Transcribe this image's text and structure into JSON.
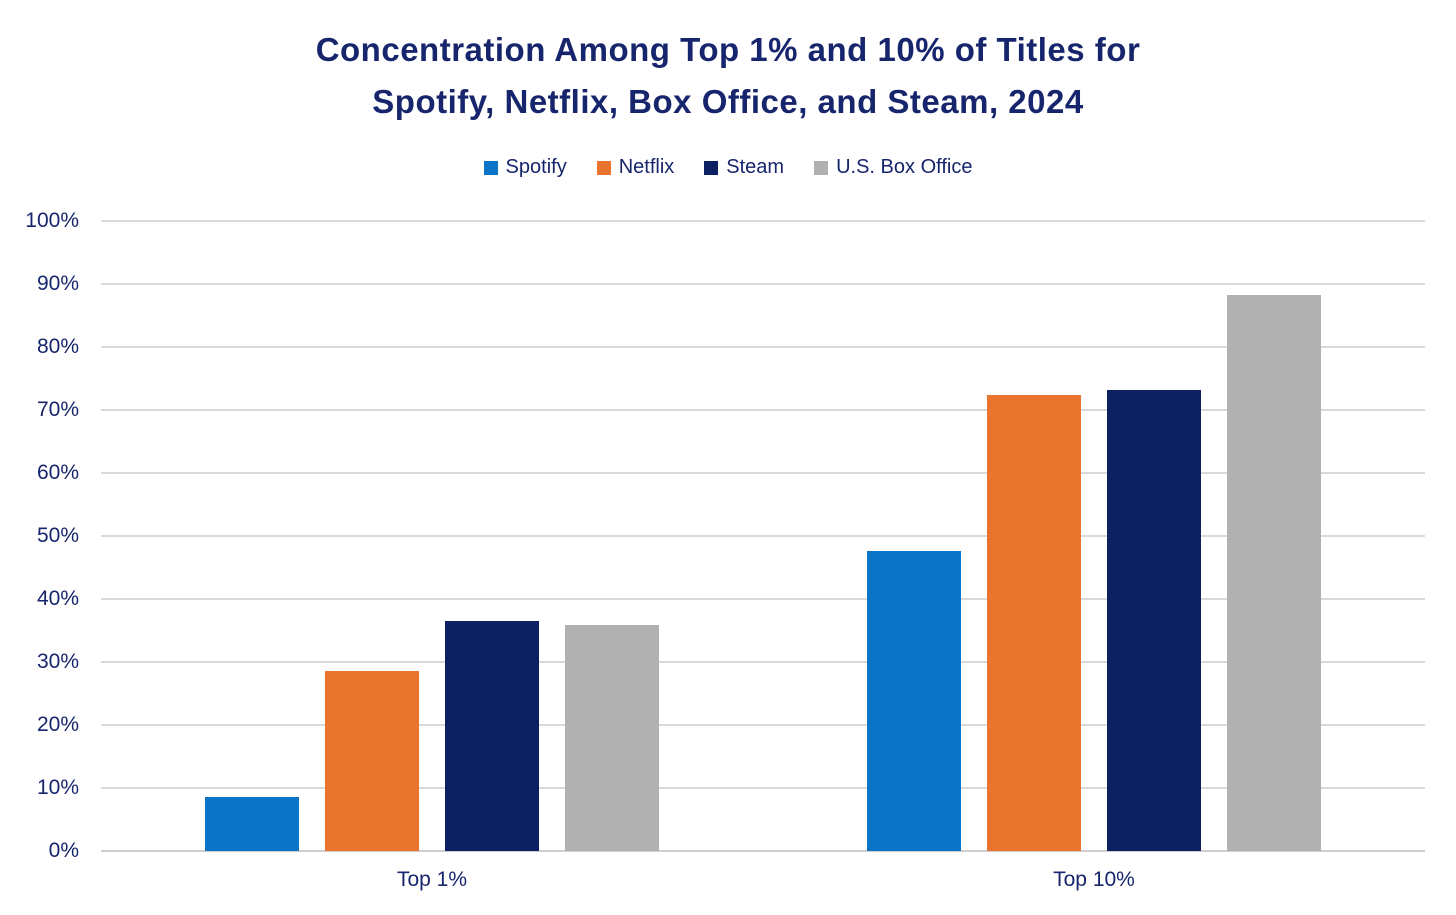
{
  "title": {
    "line1": "Concentration Among Top 1% and 10% of Titles for",
    "line2": "Spotify, Netflix, Box Office, and Steam, 2024"
  },
  "chart_data": {
    "type": "bar",
    "title": "Concentration Among Top 1% and 10% of Titles for Spotify, Netflix, Box Office, and Steam, 2024",
    "categories": [
      "Top 1%",
      "Top 10%"
    ],
    "series": [
      {
        "name": "Spotify",
        "color": "#0A75C6",
        "values": [
          8.5,
          47.6
        ]
      },
      {
        "name": "Netflix",
        "color": "#E8742E",
        "values": [
          28.5,
          72.4
        ]
      },
      {
        "name": "Steam",
        "color": "#0B2161",
        "values": [
          36.5,
          73.1
        ]
      },
      {
        "name": "U.S. Box Office",
        "color": "#B1B1B1",
        "values": [
          35.8,
          88.3
        ]
      }
    ],
    "y_axis": {
      "min": 0,
      "max": 100,
      "step": 10,
      "tick_labels": [
        "0%",
        "10%",
        "20%",
        "30%",
        "40%",
        "50%",
        "60%",
        "70%",
        "80%",
        "90%",
        "100%"
      ]
    },
    "xlabel": "",
    "ylabel": "",
    "grid": true,
    "legend_position": "top"
  },
  "colors": {
    "text": "#17256C",
    "gridline": "#D9D9D9",
    "background": "#FFFFFF"
  }
}
